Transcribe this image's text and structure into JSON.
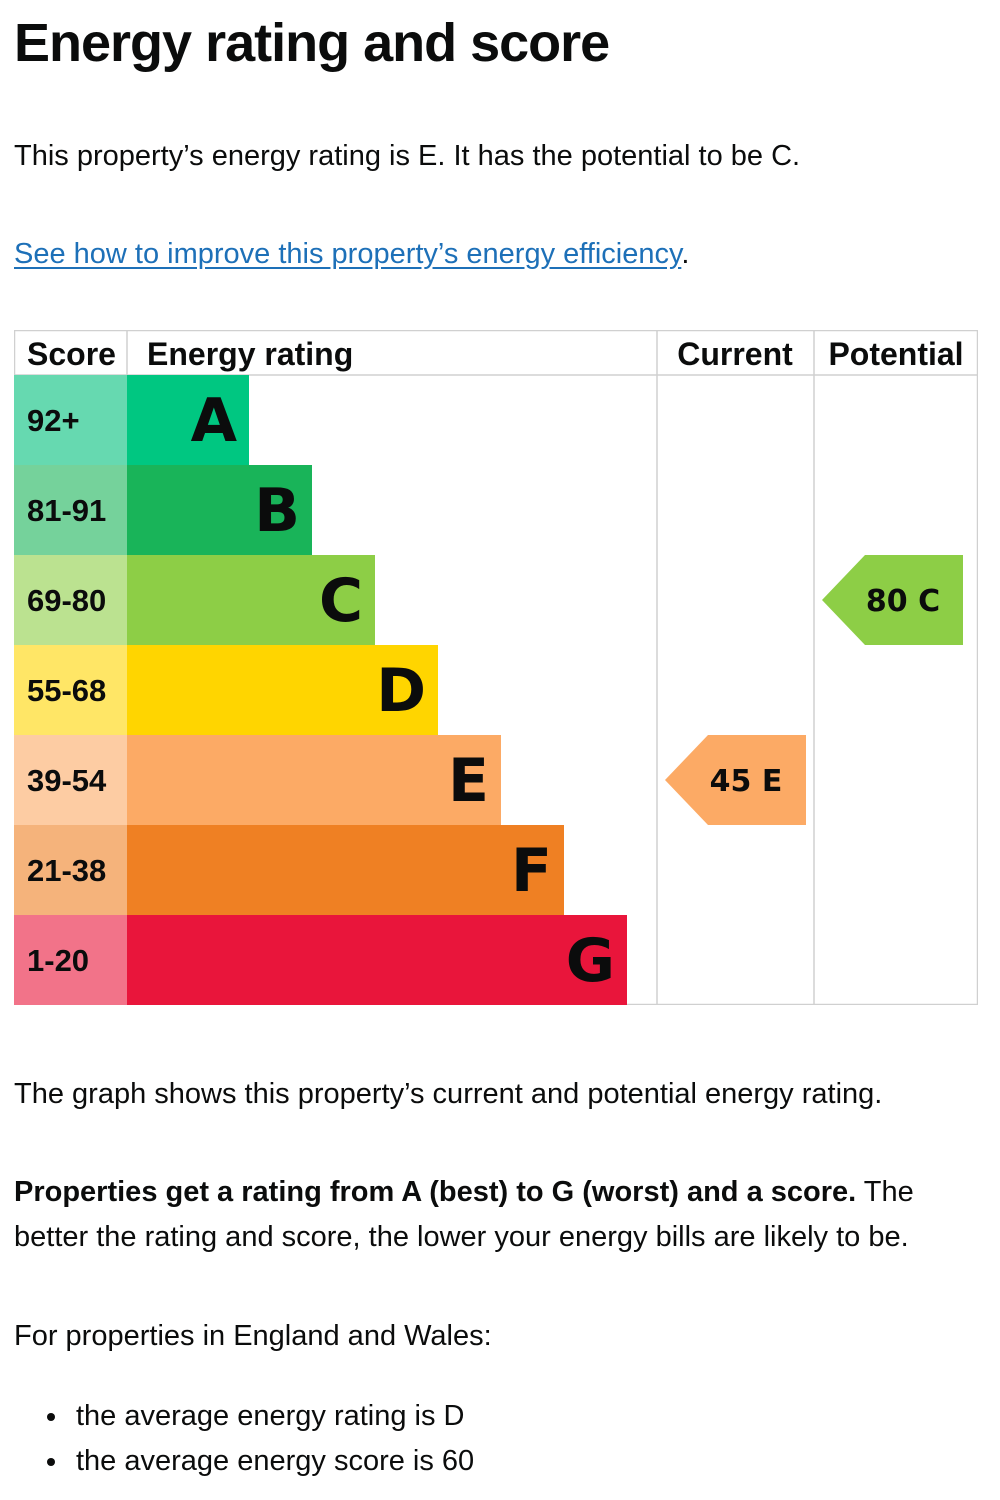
{
  "page": {
    "title": "Energy rating and score",
    "intro": "This property’s energy rating is E. It has the potential to be C.",
    "improve_link": "See how to improve this property’s energy efficiency",
    "improve_suffix": ".",
    "graph_note": "The graph shows this property’s current and potential energy rating.",
    "rating_note_bold": "Properties get a rating from A (best) to G (worst) and a score.",
    "rating_note_rest": " The better the rating and score, the lower your energy bills are likely to be.",
    "region_note": "For properties in England and Wales:",
    "bullets": [
      "the average energy rating is D",
      "the average energy score is 60"
    ]
  },
  "chart_data": {
    "type": "bar",
    "headers": [
      "Score",
      "Energy rating",
      "Current",
      "Potential"
    ],
    "bands": [
      {
        "band": "A",
        "score_range": "92+",
        "color": "#00c781",
        "score_color": "#66d9b0"
      },
      {
        "band": "B",
        "score_range": "81-91",
        "color": "#19b459",
        "score_color": "#75d29b"
      },
      {
        "band": "C",
        "score_range": "69-80",
        "color": "#8dce46",
        "score_color": "#bbe290"
      },
      {
        "band": "D",
        "score_range": "55-68",
        "color": "#ffd500",
        "score_color": "#ffe666"
      },
      {
        "band": "E",
        "score_range": "39-54",
        "color": "#fcaa65",
        "score_color": "#fdcca3"
      },
      {
        "band": "F",
        "score_range": "21-38",
        "color": "#ef8023",
        "score_color": "#f5b37b"
      },
      {
        "band": "G",
        "score_range": "1-20",
        "color": "#e9153b",
        "score_color": "#f27389"
      }
    ],
    "current": {
      "score": 45,
      "band": "E",
      "label": "45 E",
      "color": "#fcaa65"
    },
    "potential": {
      "score": 80,
      "band": "C",
      "label": "80 C",
      "color": "#8dce46"
    }
  }
}
